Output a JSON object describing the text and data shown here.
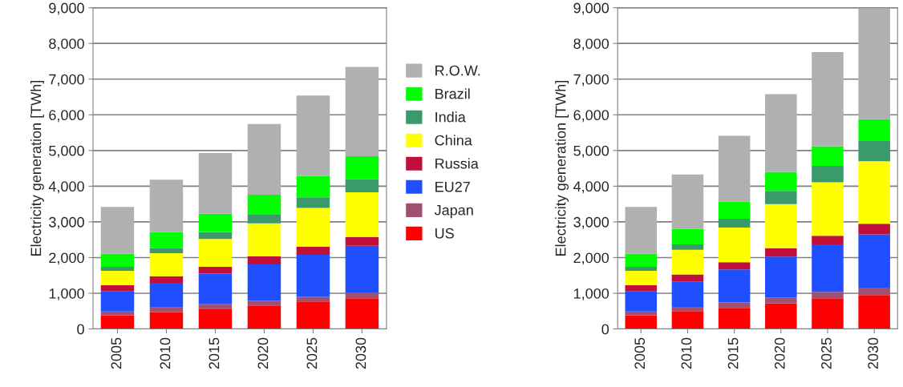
{
  "chart_data": [
    {
      "type": "bar",
      "stacked": true,
      "ylabel": "Electricity generation [TWh]",
      "categories": [
        "2005",
        "2010",
        "2015",
        "2020",
        "2025",
        "2030"
      ],
      "ylim": [
        0,
        9000
      ],
      "yticks": [
        {
          "value": 0,
          "label": "0"
        },
        {
          "value": 1000,
          "label": "1,000"
        },
        {
          "value": 2000,
          "label": "2,000"
        },
        {
          "value": 3000,
          "label": "3,000"
        },
        {
          "value": 4000,
          "label": "4,000"
        },
        {
          "value": 5000,
          "label": "5,000"
        },
        {
          "value": 6000,
          "label": "6,000"
        },
        {
          "value": 7000,
          "label": "7,000"
        },
        {
          "value": 8000,
          "label": "8,000"
        },
        {
          "value": 9000,
          "label": "9,000"
        }
      ],
      "grid": "y",
      "legend": "right",
      "series": [
        {
          "name": "US",
          "color": "#ff0000",
          "values": [
            380,
            470,
            570,
            660,
            770,
            860
          ]
        },
        {
          "name": "Japan",
          "color": "#a05070",
          "values": [
            110,
            130,
            130,
            130,
            130,
            160
          ]
        },
        {
          "name": "EU27",
          "color": "#1f4fff",
          "values": [
            560,
            690,
            850,
            1020,
            1180,
            1310
          ]
        },
        {
          "name": "Russia",
          "color": "#c0103a",
          "values": [
            180,
            190,
            190,
            230,
            230,
            240
          ]
        },
        {
          "name": "China",
          "color": "#ffff00",
          "values": [
            400,
            640,
            780,
            920,
            1080,
            1260
          ]
        },
        {
          "name": "India",
          "color": "#3a9a6a",
          "values": [
            110,
            150,
            200,
            240,
            300,
            370
          ]
        },
        {
          "name": "Brazil",
          "color": "#00ff00",
          "values": [
            370,
            440,
            510,
            560,
            600,
            640
          ]
        },
        {
          "name": "R.O.W.",
          "color": "#b0b0b0",
          "values": [
            1310,
            1470,
            1700,
            1980,
            2250,
            2500
          ]
        }
      ]
    },
    {
      "type": "bar",
      "stacked": true,
      "ylabel": "Electricity generation [TWh]",
      "categories": [
        "2005",
        "2010",
        "2015",
        "2020",
        "2025",
        "2030"
      ],
      "ylim": [
        0,
        9000
      ],
      "yticks": [
        {
          "value": 0,
          "label": "0"
        },
        {
          "value": 1000,
          "label": "1,000"
        },
        {
          "value": 2000,
          "label": "2,000"
        },
        {
          "value": 3000,
          "label": "3,000"
        },
        {
          "value": 4000,
          "label": "4,000"
        },
        {
          "value": 5000,
          "label": "5,000"
        },
        {
          "value": 6000,
          "label": "6,000"
        },
        {
          "value": 7000,
          "label": "7,000"
        },
        {
          "value": 8000,
          "label": "8,000"
        },
        {
          "value": 9000,
          "label": "9,000"
        }
      ],
      "grid": "y",
      "series": [
        {
          "color": "#ff0000",
          "values": [
            380,
            500,
            590,
            720,
            860,
            950
          ]
        },
        {
          "color": "#a05070",
          "values": [
            110,
            120,
            160,
            160,
            180,
            210
          ]
        },
        {
          "color": "#1f4fff",
          "values": [
            560,
            700,
            920,
            1150,
            1330,
            1490
          ]
        },
        {
          "color": "#c0103a",
          "values": [
            180,
            210,
            200,
            230,
            240,
            300
          ]
        },
        {
          "color": "#ffff00",
          "values": [
            400,
            690,
            970,
            1240,
            1500,
            1750
          ]
        },
        {
          "color": "#3a9a6a",
          "values": [
            110,
            150,
            250,
            370,
            460,
            580
          ]
        },
        {
          "color": "#00ff00",
          "values": [
            370,
            440,
            480,
            530,
            550,
            600
          ]
        },
        {
          "color": "#b0b0b0",
          "values": [
            1310,
            1520,
            1840,
            2180,
            2640,
            3100
          ]
        }
      ]
    }
  ]
}
